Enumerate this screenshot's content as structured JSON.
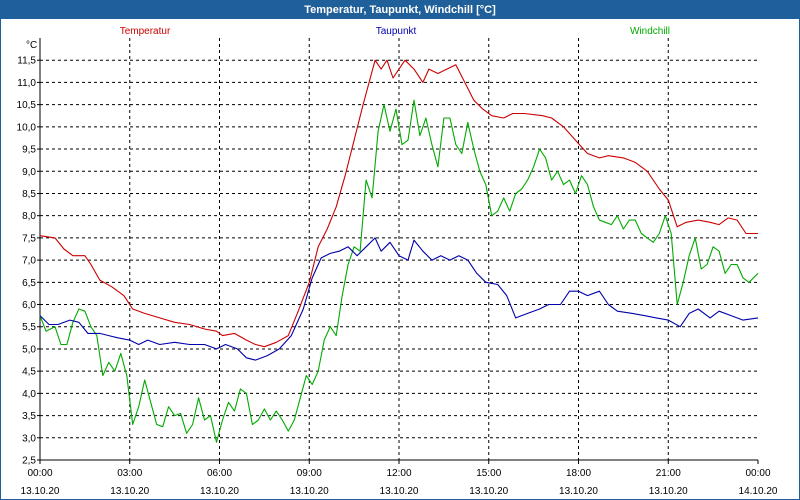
{
  "chart_data": {
    "type": "line",
    "title": "Temperatur, Taupunkt, Windchill [°C]",
    "ylabel": "°C",
    "ylim": [
      2.5,
      12.0
    ],
    "yticks": [
      "2,5",
      "3,0",
      "3,5",
      "4,0",
      "4,5",
      "5,0",
      "5,5",
      "6,0",
      "6,5",
      "7,0",
      "7,5",
      "8,0",
      "8,5",
      "9,0",
      "9,5",
      "10,0",
      "10,5",
      "11,0",
      "11,5"
    ],
    "xlim": [
      0,
      24
    ],
    "xticks": [
      {
        "x": 0,
        "time": "00:00",
        "date": "13.10.20"
      },
      {
        "x": 3,
        "time": "03:00",
        "date": "13.10.20"
      },
      {
        "x": 6,
        "time": "06:00",
        "date": "13.10.20"
      },
      {
        "x": 9,
        "time": "09:00",
        "date": "13.10.20"
      },
      {
        "x": 12,
        "time": "12:00",
        "date": "13.10.20"
      },
      {
        "x": 15,
        "time": "15:00",
        "date": "13.10.20"
      },
      {
        "x": 18,
        "time": "18:00",
        "date": "13.10.20"
      },
      {
        "x": 21,
        "time": "21:00",
        "date": "13.10.20"
      },
      {
        "x": 24,
        "time": "00:00",
        "date": "14.10.20"
      }
    ],
    "grid": true,
    "series": [
      {
        "name": "Temperatur",
        "color": "#cc0000",
        "points": [
          [
            0,
            7.55
          ],
          [
            0.5,
            7.5
          ],
          [
            0.8,
            7.25
          ],
          [
            1.1,
            7.1
          ],
          [
            1.5,
            7.1
          ],
          [
            1.7,
            6.9
          ],
          [
            2.0,
            6.55
          ],
          [
            2.4,
            6.4
          ],
          [
            2.8,
            6.2
          ],
          [
            3.1,
            5.9
          ],
          [
            3.5,
            5.8
          ],
          [
            4.0,
            5.7
          ],
          [
            4.5,
            5.6
          ],
          [
            5.0,
            5.55
          ],
          [
            5.5,
            5.45
          ],
          [
            5.9,
            5.4
          ],
          [
            6.1,
            5.3
          ],
          [
            6.5,
            5.35
          ],
          [
            6.9,
            5.2
          ],
          [
            7.2,
            5.1
          ],
          [
            7.5,
            5.05
          ],
          [
            7.9,
            5.15
          ],
          [
            8.3,
            5.3
          ],
          [
            8.6,
            5.8
          ],
          [
            9.0,
            6.5
          ],
          [
            9.3,
            7.3
          ],
          [
            9.6,
            7.7
          ],
          [
            9.9,
            8.2
          ],
          [
            10.2,
            8.9
          ],
          [
            10.5,
            9.7
          ],
          [
            10.8,
            10.5
          ],
          [
            11.0,
            11.0
          ],
          [
            11.2,
            11.5
          ],
          [
            11.4,
            11.3
          ],
          [
            11.6,
            11.5
          ],
          [
            11.8,
            11.1
          ],
          [
            12.0,
            11.3
          ],
          [
            12.2,
            11.5
          ],
          [
            12.5,
            11.3
          ],
          [
            12.8,
            11.0
          ],
          [
            13.0,
            11.3
          ],
          [
            13.3,
            11.2
          ],
          [
            13.6,
            11.3
          ],
          [
            13.9,
            11.4
          ],
          [
            14.2,
            11.0
          ],
          [
            14.5,
            10.6
          ],
          [
            14.8,
            10.4
          ],
          [
            15.1,
            10.25
          ],
          [
            15.5,
            10.2
          ],
          [
            15.8,
            10.3
          ],
          [
            16.2,
            10.3
          ],
          [
            16.8,
            10.25
          ],
          [
            17.1,
            10.2
          ],
          [
            17.5,
            10.0
          ],
          [
            17.9,
            9.7
          ],
          [
            18.3,
            9.4
          ],
          [
            18.7,
            9.3
          ],
          [
            19.0,
            9.35
          ],
          [
            19.5,
            9.3
          ],
          [
            19.9,
            9.2
          ],
          [
            20.3,
            9.0
          ],
          [
            20.7,
            8.6
          ],
          [
            21.0,
            8.35
          ],
          [
            21.3,
            7.75
          ],
          [
            21.6,
            7.85
          ],
          [
            22.0,
            7.9
          ],
          [
            22.4,
            7.85
          ],
          [
            22.7,
            7.8
          ],
          [
            23.0,
            7.95
          ],
          [
            23.3,
            7.9
          ],
          [
            23.6,
            7.6
          ],
          [
            24.0,
            7.6
          ]
        ]
      },
      {
        "name": "Taupunkt",
        "color": "#0000aa",
        "points": [
          [
            0,
            5.75
          ],
          [
            0.3,
            5.55
          ],
          [
            0.6,
            5.55
          ],
          [
            1.0,
            5.65
          ],
          [
            1.3,
            5.6
          ],
          [
            1.6,
            5.35
          ],
          [
            2.0,
            5.35
          ],
          [
            2.3,
            5.3
          ],
          [
            2.6,
            5.25
          ],
          [
            3.0,
            5.2
          ],
          [
            3.3,
            5.1
          ],
          [
            3.6,
            5.2
          ],
          [
            4.0,
            5.1
          ],
          [
            4.5,
            5.15
          ],
          [
            5.0,
            5.1
          ],
          [
            5.5,
            5.1
          ],
          [
            5.9,
            5.0
          ],
          [
            6.2,
            5.1
          ],
          [
            6.6,
            5.0
          ],
          [
            6.9,
            4.8
          ],
          [
            7.2,
            4.75
          ],
          [
            7.6,
            4.85
          ],
          [
            8.0,
            5.0
          ],
          [
            8.4,
            5.3
          ],
          [
            8.8,
            5.9
          ],
          [
            9.1,
            6.6
          ],
          [
            9.4,
            7.05
          ],
          [
            9.7,
            7.15
          ],
          [
            10.0,
            7.2
          ],
          [
            10.3,
            7.3
          ],
          [
            10.6,
            7.1
          ],
          [
            10.9,
            7.3
          ],
          [
            11.2,
            7.5
          ],
          [
            11.4,
            7.2
          ],
          [
            11.7,
            7.4
          ],
          [
            12.0,
            7.1
          ],
          [
            12.3,
            7.0
          ],
          [
            12.5,
            7.45
          ],
          [
            12.8,
            7.2
          ],
          [
            13.1,
            7.0
          ],
          [
            13.4,
            7.1
          ],
          [
            13.7,
            7.0
          ],
          [
            14.0,
            7.1
          ],
          [
            14.3,
            7.0
          ],
          [
            14.6,
            6.7
          ],
          [
            14.9,
            6.5
          ],
          [
            15.3,
            6.45
          ],
          [
            15.6,
            6.2
          ],
          [
            15.9,
            5.7
          ],
          [
            16.3,
            5.8
          ],
          [
            16.7,
            5.9
          ],
          [
            17.0,
            6.0
          ],
          [
            17.4,
            6.0
          ],
          [
            17.7,
            6.3
          ],
          [
            18.0,
            6.3
          ],
          [
            18.3,
            6.2
          ],
          [
            18.7,
            6.3
          ],
          [
            19.0,
            6.0
          ],
          [
            19.3,
            5.85
          ],
          [
            19.8,
            5.8
          ],
          [
            20.2,
            5.75
          ],
          [
            20.6,
            5.7
          ],
          [
            21.0,
            5.65
          ],
          [
            21.4,
            5.5
          ],
          [
            21.7,
            5.8
          ],
          [
            22.0,
            5.9
          ],
          [
            22.4,
            5.7
          ],
          [
            22.7,
            5.85
          ],
          [
            23.1,
            5.75
          ],
          [
            23.5,
            5.65
          ],
          [
            24.0,
            5.7
          ]
        ]
      },
      {
        "name": "Windchill",
        "color": "#00aa00",
        "points": [
          [
            0,
            5.75
          ],
          [
            0.2,
            5.4
          ],
          [
            0.5,
            5.5
          ],
          [
            0.7,
            5.1
          ],
          [
            0.9,
            5.1
          ],
          [
            1.1,
            5.6
          ],
          [
            1.3,
            5.9
          ],
          [
            1.5,
            5.85
          ],
          [
            1.7,
            5.5
          ],
          [
            1.9,
            5.3
          ],
          [
            2.1,
            4.4
          ],
          [
            2.3,
            4.7
          ],
          [
            2.5,
            4.5
          ],
          [
            2.7,
            4.9
          ],
          [
            2.9,
            4.4
          ],
          [
            3.1,
            3.3
          ],
          [
            3.3,
            3.7
          ],
          [
            3.5,
            4.3
          ],
          [
            3.7,
            3.8
          ],
          [
            3.9,
            3.3
          ],
          [
            4.1,
            3.25
          ],
          [
            4.3,
            3.7
          ],
          [
            4.5,
            3.5
          ],
          [
            4.7,
            3.55
          ],
          [
            4.9,
            3.1
          ],
          [
            5.1,
            3.3
          ],
          [
            5.3,
            3.9
          ],
          [
            5.5,
            3.4
          ],
          [
            5.7,
            3.5
          ],
          [
            5.9,
            2.9
          ],
          [
            6.1,
            3.4
          ],
          [
            6.3,
            3.8
          ],
          [
            6.5,
            3.6
          ],
          [
            6.7,
            4.1
          ],
          [
            6.9,
            4.0
          ],
          [
            7.1,
            3.3
          ],
          [
            7.3,
            3.4
          ],
          [
            7.5,
            3.65
          ],
          [
            7.7,
            3.4
          ],
          [
            7.9,
            3.6
          ],
          [
            8.1,
            3.4
          ],
          [
            8.3,
            3.15
          ],
          [
            8.5,
            3.4
          ],
          [
            8.7,
            3.9
          ],
          [
            8.9,
            4.4
          ],
          [
            9.1,
            4.2
          ],
          [
            9.3,
            4.5
          ],
          [
            9.5,
            5.2
          ],
          [
            9.7,
            5.5
          ],
          [
            9.9,
            5.3
          ],
          [
            10.1,
            6.2
          ],
          [
            10.3,
            6.9
          ],
          [
            10.5,
            7.3
          ],
          [
            10.7,
            7.2
          ],
          [
            10.9,
            8.8
          ],
          [
            11.1,
            8.4
          ],
          [
            11.3,
            9.9
          ],
          [
            11.5,
            10.5
          ],
          [
            11.7,
            9.9
          ],
          [
            11.9,
            10.4
          ],
          [
            12.1,
            9.6
          ],
          [
            12.3,
            9.7
          ],
          [
            12.5,
            10.6
          ],
          [
            12.7,
            9.8
          ],
          [
            12.9,
            10.2
          ],
          [
            13.1,
            9.6
          ],
          [
            13.3,
            9.1
          ],
          [
            13.5,
            10.2
          ],
          [
            13.7,
            10.2
          ],
          [
            13.9,
            9.6
          ],
          [
            14.1,
            9.4
          ],
          [
            14.3,
            10.1
          ],
          [
            14.5,
            9.5
          ],
          [
            14.7,
            9.0
          ],
          [
            14.9,
            8.7
          ],
          [
            15.1,
            8.0
          ],
          [
            15.3,
            8.1
          ],
          [
            15.5,
            8.4
          ],
          [
            15.7,
            8.1
          ],
          [
            15.9,
            8.5
          ],
          [
            16.1,
            8.6
          ],
          [
            16.3,
            8.8
          ],
          [
            16.5,
            9.1
          ],
          [
            16.7,
            9.5
          ],
          [
            16.9,
            9.3
          ],
          [
            17.1,
            8.8
          ],
          [
            17.3,
            9.0
          ],
          [
            17.5,
            8.7
          ],
          [
            17.7,
            8.8
          ],
          [
            17.9,
            8.5
          ],
          [
            18.1,
            8.9
          ],
          [
            18.3,
            8.7
          ],
          [
            18.5,
            8.2
          ],
          [
            18.7,
            7.9
          ],
          [
            18.9,
            7.85
          ],
          [
            19.1,
            7.8
          ],
          [
            19.3,
            8.0
          ],
          [
            19.5,
            7.7
          ],
          [
            19.7,
            7.9
          ],
          [
            19.9,
            7.9
          ],
          [
            20.1,
            7.6
          ],
          [
            20.3,
            7.5
          ],
          [
            20.5,
            7.4
          ],
          [
            20.7,
            7.6
          ],
          [
            20.9,
            8.0
          ],
          [
            21.1,
            7.6
          ],
          [
            21.3,
            6.0
          ],
          [
            21.5,
            6.5
          ],
          [
            21.7,
            7.1
          ],
          [
            21.9,
            7.5
          ],
          [
            22.1,
            6.8
          ],
          [
            22.3,
            6.9
          ],
          [
            22.5,
            7.3
          ],
          [
            22.7,
            7.2
          ],
          [
            22.9,
            6.7
          ],
          [
            23.1,
            6.9
          ],
          [
            23.3,
            6.9
          ],
          [
            23.5,
            6.6
          ],
          [
            23.7,
            6.5
          ],
          [
            24.0,
            6.7
          ]
        ]
      }
    ]
  }
}
